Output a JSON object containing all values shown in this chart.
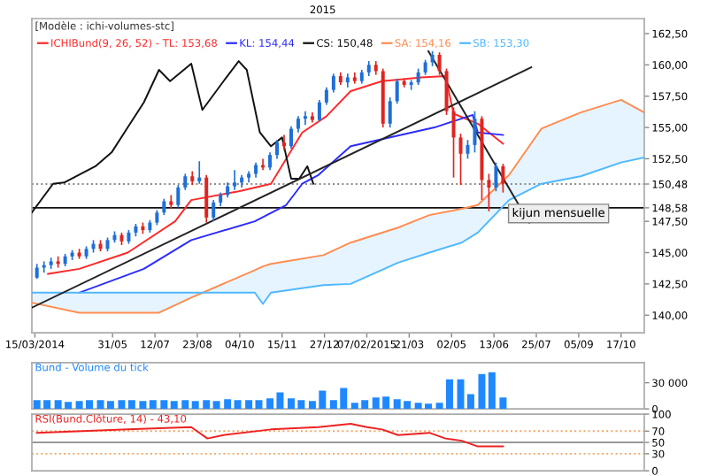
{
  "chart_data": [
    {
      "type": "candlestick",
      "title": "[Modèle : ichi-volumes-stc]",
      "legend": "top left",
      "x": [
        "2014-03-17",
        "2014-03-24",
        "2014-03-31",
        "2014-04-07",
        "2014-04-14",
        "2014-04-21",
        "2014-04-28",
        "2014-05-05",
        "2014-05-12",
        "2014-05-19",
        "2014-05-26",
        "2014-06-02",
        "2014-06-09",
        "2014-06-16",
        "2014-06-23",
        "2014-06-30",
        "2014-07-07",
        "2014-07-14",
        "2014-07-21",
        "2014-07-28",
        "2014-08-04",
        "2014-08-11",
        "2014-08-18",
        "2014-08-25",
        "2014-09-01",
        "2014-09-08",
        "2014-09-15",
        "2014-09-22",
        "2014-09-29",
        "2014-10-06",
        "2014-10-13",
        "2014-10-20",
        "2014-10-27",
        "2014-11-03",
        "2014-11-10",
        "2014-11-17",
        "2014-11-24",
        "2014-12-01",
        "2014-12-08",
        "2014-12-15",
        "2014-12-22",
        "2014-12-29",
        "2015-01-05",
        "2015-01-12",
        "2015-01-19",
        "2015-01-26",
        "2015-02-02",
        "2015-02-09",
        "2015-02-16",
        "2015-02-23",
        "2015-03-02",
        "2015-03-09",
        "2015-03-16",
        "2015-03-23",
        "2015-03-30",
        "2015-04-06",
        "2015-04-13",
        "2015-04-20",
        "2015-04-27",
        "2015-05-04",
        "2015-05-11",
        "2015-05-18",
        "2015-05-25",
        "2015-06-01",
        "2015-06-08",
        "2015-06-15",
        "2015-06-22"
      ],
      "ohlc": [
        [
          143.0,
          144.1,
          142.9,
          143.8
        ],
        [
          143.8,
          144.3,
          143.4,
          144.0
        ],
        [
          144.0,
          144.6,
          143.7,
          144.3
        ],
        [
          144.3,
          144.7,
          143.8,
          144.1
        ],
        [
          144.1,
          144.9,
          143.9,
          144.7
        ],
        [
          144.7,
          145.2,
          144.4,
          145.0
        ],
        [
          145.0,
          145.3,
          144.5,
          144.7
        ],
        [
          144.7,
          145.5,
          144.5,
          145.3
        ],
        [
          145.3,
          146.0,
          145.0,
          145.7
        ],
        [
          145.7,
          146.0,
          145.1,
          145.3
        ],
        [
          145.3,
          146.2,
          145.1,
          146.0
        ],
        [
          146.0,
          146.7,
          145.8,
          146.4
        ],
        [
          146.4,
          146.6,
          145.6,
          145.9
        ],
        [
          145.9,
          146.8,
          145.7,
          146.6
        ],
        [
          146.6,
          147.3,
          146.3,
          147.1
        ],
        [
          147.1,
          147.4,
          146.5,
          146.8
        ],
        [
          146.8,
          147.6,
          146.6,
          147.4
        ],
        [
          147.4,
          148.4,
          147.2,
          148.2
        ],
        [
          148.2,
          149.3,
          148.0,
          149.1
        ],
        [
          149.1,
          149.6,
          148.5,
          148.8
        ],
        [
          148.8,
          150.4,
          148.6,
          150.2
        ],
        [
          150.2,
          151.3,
          150.0,
          151.1
        ],
        [
          151.1,
          151.5,
          150.4,
          150.7
        ],
        [
          150.7,
          152.3,
          150.5,
          151.0
        ],
        [
          151.0,
          151.2,
          147.4,
          147.8
        ],
        [
          147.8,
          149.2,
          147.5,
          149.0
        ],
        [
          149.0,
          149.8,
          148.7,
          149.6
        ],
        [
          149.6,
          150.6,
          149.4,
          150.3
        ],
        [
          150.3,
          151.6,
          150.0,
          150.6
        ],
        [
          150.6,
          151.2,
          150.2,
          151.0
        ],
        [
          151.0,
          151.5,
          150.6,
          151.3
        ],
        [
          151.3,
          152.2,
          151.0,
          152.0
        ],
        [
          152.0,
          152.5,
          151.6,
          151.8
        ],
        [
          151.8,
          153.0,
          151.6,
          152.8
        ],
        [
          152.8,
          154.0,
          152.5,
          153.8
        ],
        [
          153.8,
          154.4,
          153.2,
          153.5
        ],
        [
          153.5,
          155.1,
          153.3,
          154.9
        ],
        [
          154.9,
          155.9,
          154.6,
          155.7
        ],
        [
          155.7,
          156.3,
          155.2,
          155.9
        ],
        [
          155.9,
          156.2,
          155.4,
          155.6
        ],
        [
          155.6,
          157.2,
          155.5,
          157.0
        ],
        [
          157.0,
          158.2,
          156.8,
          158.0
        ],
        [
          158.0,
          159.3,
          157.8,
          159.1
        ],
        [
          159.1,
          159.4,
          158.4,
          158.6
        ],
        [
          158.6,
          159.3,
          158.2,
          159.0
        ],
        [
          159.0,
          159.4,
          158.5,
          158.7
        ],
        [
          158.7,
          159.6,
          158.5,
          159.4
        ],
        [
          159.4,
          160.3,
          159.1,
          160.0
        ],
        [
          160.0,
          160.3,
          159.2,
          159.5
        ],
        [
          159.5,
          159.7,
          155.0,
          155.3
        ],
        [
          155.3,
          157.4,
          155.0,
          157.1
        ],
        [
          157.1,
          158.9,
          156.9,
          158.7
        ],
        [
          158.7,
          158.9,
          158.2,
          158.4
        ],
        [
          158.4,
          158.8,
          158.0,
          158.6
        ],
        [
          158.6,
          159.7,
          158.4,
          159.4
        ],
        [
          159.4,
          160.4,
          159.2,
          160.2
        ],
        [
          160.2,
          161.1,
          159.9,
          160.8
        ],
        [
          160.8,
          161.0,
          159.2,
          159.5
        ],
        [
          159.5,
          159.7,
          156.0,
          156.3
        ],
        [
          156.3,
          156.6,
          151.0,
          154.2
        ],
        [
          154.2,
          154.5,
          150.4,
          152.9
        ],
        [
          152.9,
          154.0,
          152.5,
          153.6
        ],
        [
          153.6,
          156.3,
          153.0,
          155.7
        ],
        [
          155.7,
          155.9,
          149.2,
          150.8
        ],
        [
          150.8,
          151.3,
          148.3,
          150.2
        ],
        [
          150.2,
          152.2,
          149.9,
          151.9
        ],
        [
          151.9,
          152.1,
          149.8,
          150.5
        ]
      ],
      "colors": [
        "#1f6fd6",
        "#1f6fd6",
        "#1f6fd6",
        "#e0241f",
        "#1f6fd6",
        "#1f6fd6",
        "#e0241f",
        "#1f6fd6",
        "#1f6fd6",
        "#e0241f",
        "#1f6fd6",
        "#1f6fd6",
        "#e0241f",
        "#1f6fd6",
        "#1f6fd6",
        "#e0241f",
        "#1f6fd6",
        "#1f6fd6",
        "#1f6fd6",
        "#e0241f",
        "#1f6fd6",
        "#1f6fd6",
        "#e0241f",
        "#1f6fd6",
        "#e0241f",
        "#1f6fd6",
        "#1f6fd6",
        "#1f6fd6",
        "#1f6fd6",
        "#1f6fd6",
        "#1f6fd6",
        "#1f6fd6",
        "#e0241f",
        "#1f6fd6",
        "#1f6fd6",
        "#e0241f",
        "#1f6fd6",
        "#1f6fd6",
        "#1f6fd6",
        "#e0241f",
        "#1f6fd6",
        "#1f6fd6",
        "#1f6fd6",
        "#e0241f",
        "#1f6fd6",
        "#e0241f",
        "#1f6fd6",
        "#1f6fd6",
        "#e0241f",
        "#e0241f",
        "#1f6fd6",
        "#1f6fd6",
        "#e0241f",
        "#1f6fd6",
        "#1f6fd6",
        "#1f6fd6",
        "#1f6fd6",
        "#e0241f",
        "#e0241f",
        "#e0241f",
        "#e0241f",
        "#1f6fd6",
        "#1f6fd6",
        "#e0241f",
        "#e0241f",
        "#1f6fd6",
        "#e0241f"
      ],
      "series": [
        {
          "type": "line",
          "name": "ICHIBund(9, 26, 52) - TL: 153,68",
          "color": "#ff2a2a",
          "x": [
            "2014-03-28",
            "2014-04-28",
            "2014-06-15",
            "2014-08-01",
            "2014-08-17",
            "2014-10-03",
            "2014-11-04",
            "2014-12-05",
            "2014-12-29",
            "2015-01-22",
            "2015-02-22",
            "2015-04-02",
            "2015-04-26",
            "2015-05-04",
            "2015-05-28",
            "2015-06-22"
          ],
          "values": [
            143.3,
            143.7,
            145.0,
            147.5,
            149.2,
            149.9,
            150.5,
            154.6,
            155.9,
            157.9,
            158.7,
            159.0,
            159.1,
            156.1,
            155.3,
            153.7
          ]
        },
        {
          "type": "line",
          "name": "KL: 154,44",
          "color": "#2b2bff",
          "x": [
            "2014-04-28",
            "2014-07-01",
            "2014-08-17",
            "2014-10-19",
            "2014-11-19",
            "2014-12-05",
            "2014-12-21",
            "2015-01-22",
            "2015-04-15",
            "2015-05-23",
            "2015-05-28",
            "2015-06-22"
          ],
          "values": [
            141.8,
            143.7,
            146.0,
            147.5,
            148.8,
            150.5,
            151.2,
            153.5,
            155.0,
            156.0,
            154.6,
            154.4
          ]
        },
        {
          "type": "line",
          "name": "CS: 150,48",
          "color": "#111111",
          "x": [
            "2014-03-12",
            "2014-04-02",
            "2014-04-13",
            "2014-05-14",
            "2014-05-30",
            "2014-06-15",
            "2014-07-01",
            "2014-07-16",
            "2014-07-27",
            "2014-08-17",
            "2014-08-28",
            "2014-09-18",
            "2014-10-03",
            "2014-10-11",
            "2014-10-24",
            "2014-11-04",
            "2014-11-15",
            "2014-11-24",
            "2014-12-02",
            "2014-12-10",
            "2014-12-16"
          ],
          "values": [
            148.2,
            150.5,
            150.6,
            151.9,
            153.0,
            155.0,
            157.0,
            159.6,
            158.7,
            160.1,
            156.4,
            158.7,
            160.3,
            159.6,
            154.6,
            153.5,
            154.2,
            150.9,
            150.9,
            151.9,
            150.5
          ]
        },
        {
          "type": "line",
          "name": "SA: 154,16",
          "color": "#ff8c50",
          "x": [
            "2014-03-12",
            "2014-04-28",
            "2014-07-16",
            "2014-08-17",
            "2014-10-19",
            "2014-10-27",
            "2014-11-04",
            "2014-12-26",
            "2015-01-22",
            "2015-03-10",
            "2015-04-10",
            "2015-05-12",
            "2015-05-28",
            "2015-06-28",
            "2015-07-30",
            "2015-09-07",
            "2015-10-17",
            "2015-11-09"
          ],
          "values": [
            141.0,
            140.2,
            140.2,
            141.4,
            143.6,
            143.9,
            144.1,
            144.8,
            145.8,
            147.0,
            148.0,
            148.5,
            148.8,
            151.2,
            154.9,
            156.2,
            157.2,
            156.2
          ]
        },
        {
          "type": "line",
          "name": "SB: 153,30",
          "color": "#4fb8ff",
          "x": [
            "2014-03-12",
            "2014-04-28",
            "2014-07-16",
            "2014-08-17",
            "2014-10-19",
            "2014-10-27",
            "2014-11-04",
            "2014-12-26",
            "2015-01-22",
            "2015-03-10",
            "2015-04-10",
            "2015-05-12",
            "2015-05-28",
            "2015-06-28",
            "2015-07-30",
            "2015-09-07",
            "2015-10-17",
            "2015-11-09"
          ],
          "values": [
            141.8,
            141.8,
            141.8,
            141.8,
            141.8,
            140.9,
            141.8,
            142.4,
            142.5,
            144.2,
            145.0,
            145.8,
            146.6,
            149.2,
            150.5,
            151.1,
            152.2,
            152.6
          ],
          "lower": [
            141.8,
            141.8,
            141.8,
            141.8,
            141.8,
            140.9,
            141.8,
            142.4,
            142.5,
            144.2,
            145.0,
            145.8,
            146.6,
            149.2,
            150.5,
            151.1,
            152.2,
            152.6
          ],
          "upper": [
            141.0,
            140.2,
            140.2,
            141.4,
            143.6,
            143.9,
            144.1,
            144.8,
            145.8,
            147.0,
            148.0,
            148.5,
            148.8,
            151.2,
            154.9,
            156.2,
            157.2,
            156.2
          ]
        },
        {
          "type": "line",
          "color": "#222222",
          "x": [
            "2014-03-12",
            "2015-07-20"
          ],
          "values": [
            140.6,
            159.8
          ]
        },
        {
          "type": "line",
          "color": "#222222",
          "x": [
            "2015-04-09",
            "2015-07-18"
          ],
          "values": [
            161.1,
            147.4
          ]
        }
      ],
      "ref_lines": [
        {
          "axis": "y",
          "value": 150.48,
          "color": "#888888",
          "line_style": "dotted"
        },
        {
          "axis": "y",
          "value": 148.58,
          "label": "kijun mensuelle",
          "color": "#111111",
          "line_style": "solid"
        }
      ],
      "xlim": [
        "2014-03-12",
        "2015-11-09"
      ],
      "xticks": [
        {
          "value": "2014-03-15",
          "label": "15/03/2014"
        },
        {
          "value": "2014-05-31",
          "label": "31/05"
        },
        {
          "value": "2014-07-12",
          "label": "12/07"
        },
        {
          "value": "2014-08-23",
          "label": "23/08"
        },
        {
          "value": "2014-10-04",
          "label": "04/10"
        },
        {
          "value": "2014-11-15",
          "label": "15/11"
        },
        {
          "value": "2014-12-27",
          "label": "27/12"
        },
        {
          "value": "2015-02-07",
          "label": "07/02/2015"
        },
        {
          "value": "2015-03-21",
          "label": "21/03"
        },
        {
          "value": "2015-05-02",
          "label": "02/05"
        },
        {
          "value": "2015-06-13",
          "label": "13/06"
        },
        {
          "value": "2015-07-25",
          "label": "25/07"
        },
        {
          "value": "2015-09-05",
          "label": "05/09"
        },
        {
          "value": "2015-10-17",
          "label": "17/10"
        }
      ],
      "annotations": [
        "2015"
      ],
      "ylim": [
        138.6,
        163.7
      ],
      "yticks": [
        {
          "value": 140,
          "label": "140,00"
        },
        {
          "value": 142.5,
          "label": "142,50"
        },
        {
          "value": 145,
          "label": "145,00"
        },
        {
          "value": 147.5,
          "label": "147,50"
        },
        {
          "value": 148.58,
          "label": "148,58"
        },
        {
          "value": 150.48,
          "label": "150,48"
        },
        {
          "value": 152.5,
          "label": "152,50"
        },
        {
          "value": 155,
          "label": "155,00"
        },
        {
          "value": 157.5,
          "label": "157,50"
        },
        {
          "value": 160,
          "label": "160,00"
        },
        {
          "value": 162.5,
          "label": "162,50"
        }
      ]
    },
    {
      "type": "bar",
      "title": "Bund - Volume du tick",
      "tick_labels": "y",
      "x": [
        "2014-03-17",
        "2014-03-27",
        "2014-04-07",
        "2014-04-17",
        "2014-04-28",
        "2014-05-08",
        "2014-05-19",
        "2014-05-29",
        "2014-06-09",
        "2014-06-19",
        "2014-06-30",
        "2014-07-10",
        "2014-07-21",
        "2014-07-31",
        "2014-08-11",
        "2014-08-21",
        "2014-09-01",
        "2014-09-11",
        "2014-09-22",
        "2014-10-02",
        "2014-10-13",
        "2014-10-23",
        "2014-11-03",
        "2014-11-13",
        "2014-11-24",
        "2014-12-04",
        "2014-12-15",
        "2014-12-25",
        "2015-01-05",
        "2015-01-15",
        "2015-01-26",
        "2015-02-05",
        "2015-02-16",
        "2015-02-26",
        "2015-03-09",
        "2015-03-19",
        "2015-03-30",
        "2015-04-09",
        "2015-04-20",
        "2015-04-30",
        "2015-05-11",
        "2015-05-21",
        "2015-06-01",
        "2015-06-11",
        "2015-06-22"
      ],
      "series": [
        {
          "color": "#1e88ff",
          "values": [
            10000,
            10000,
            10000,
            8000,
            9000,
            10000,
            10000,
            9000,
            10000,
            10000,
            9000,
            10000,
            10000,
            9000,
            10000,
            9000,
            10000,
            9000,
            11000,
            10000,
            10000,
            10000,
            12000,
            19000,
            12000,
            10000,
            9000,
            21000,
            10000,
            24000,
            7000,
            10000,
            13000,
            14000,
            11000,
            9000,
            7000,
            6000,
            7000,
            34000,
            34000,
            17000,
            40000,
            42000,
            13000
          ]
        }
      ],
      "xlim": [
        "2014-03-12",
        "2015-11-09"
      ],
      "ylim": [
        0,
        53000
      ],
      "yticks": [
        0,
        {
          "value": 30000,
          "label": "30 000"
        }
      ]
    },
    {
      "type": "line",
      "title": "RSI(Bund.Clôture, 14) - 43,10",
      "tick_labels": "y",
      "series": [
        {
          "color": "#ee2222",
          "x": [
            "2014-03-17",
            "2014-06-15",
            "2014-08-17",
            "2014-09-02",
            "2014-09-18",
            "2014-11-04",
            "2014-12-21",
            "2015-01-22",
            "2015-02-07",
            "2015-02-22",
            "2015-03-10",
            "2015-04-10",
            "2015-04-26",
            "2015-05-12",
            "2015-05-28",
            "2015-06-22"
          ],
          "values": [
            67,
            73,
            77,
            57,
            63,
            73,
            77,
            83,
            77,
            73,
            63,
            67,
            57,
            53,
            43,
            43
          ]
        }
      ],
      "ref_lines": [
        {
          "axis": "y",
          "value": 70,
          "color": "#f4a460",
          "line_style": "dotted"
        },
        {
          "axis": "y",
          "value": 50,
          "color": "#999999",
          "line_style": "solid"
        },
        {
          "axis": "y",
          "value": 30,
          "color": "#f4a460",
          "line_style": "dotted"
        }
      ],
      "xlim": [
        "2014-03-12",
        "2015-11-09"
      ],
      "ylim": [
        0,
        100
      ],
      "yticks": [
        0,
        30,
        50,
        70,
        100
      ]
    }
  ]
}
